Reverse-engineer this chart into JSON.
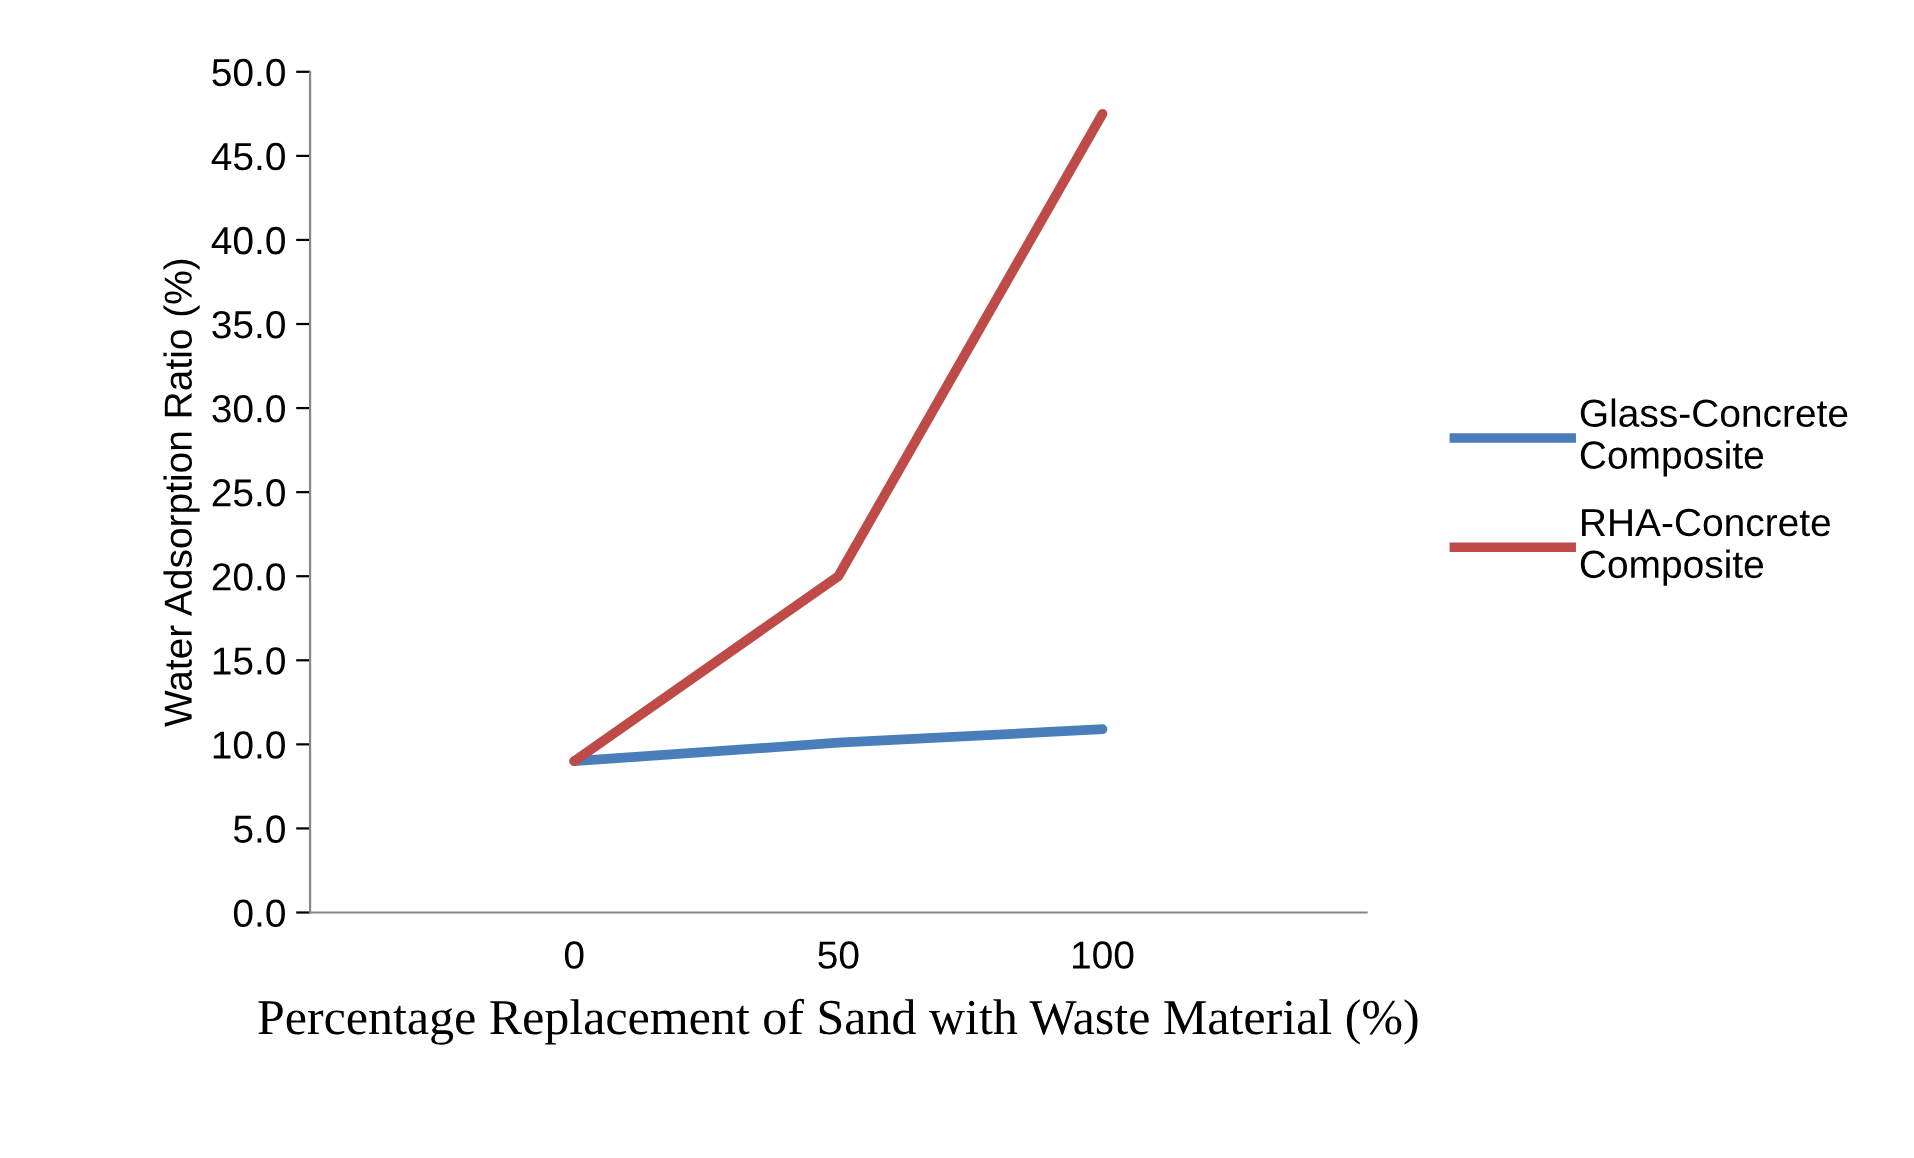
{
  "chart_data": {
    "type": "line",
    "xlabel": "Percentage Replacement of Sand with Waste Material (%)",
    "ylabel": "Water Adsorption Ratio (%)",
    "categories": [
      "0",
      "50",
      "100"
    ],
    "series": [
      {
        "name": "Glass-Concrete\nComposite",
        "color": "#4a7ebb",
        "values": [
          9.0,
          10.1,
          10.9
        ]
      },
      {
        "name": "RHA-Concrete\nComposite",
        "color": "#be4b48",
        "values": [
          9.0,
          20.0,
          47.5
        ]
      }
    ],
    "ylim": [
      0,
      50
    ],
    "yticks": [
      {
        "value": 0,
        "label": "0.0"
      },
      {
        "value": 5,
        "label": "5.0"
      },
      {
        "value": 10,
        "label": "10.0"
      },
      {
        "value": 15,
        "label": "15.0"
      },
      {
        "value": 20,
        "label": "20.0"
      },
      {
        "value": 25,
        "label": "25.0"
      },
      {
        "value": 30,
        "label": "30.0"
      },
      {
        "value": 35,
        "label": "35.0"
      },
      {
        "value": 40,
        "label": "40.0"
      },
      {
        "value": 45,
        "label": "45.0"
      },
      {
        "value": 50,
        "label": "50.0"
      }
    ],
    "legend": "right",
    "grid": false,
    "marker": "none",
    "line_style": "solid"
  }
}
